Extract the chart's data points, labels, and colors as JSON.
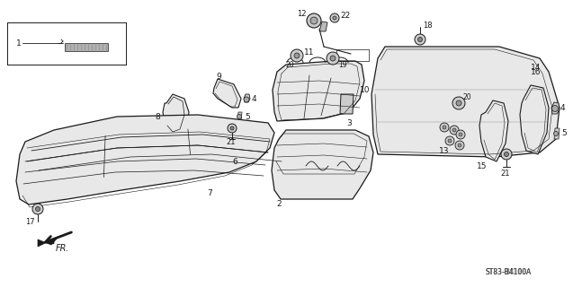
{
  "bg_color": "#ffffff",
  "line_color": "#1a1a1a",
  "fill_light": "#e8e8e8",
  "fill_mid": "#d0d0d0",
  "watermark": "ST83-B4100A"
}
